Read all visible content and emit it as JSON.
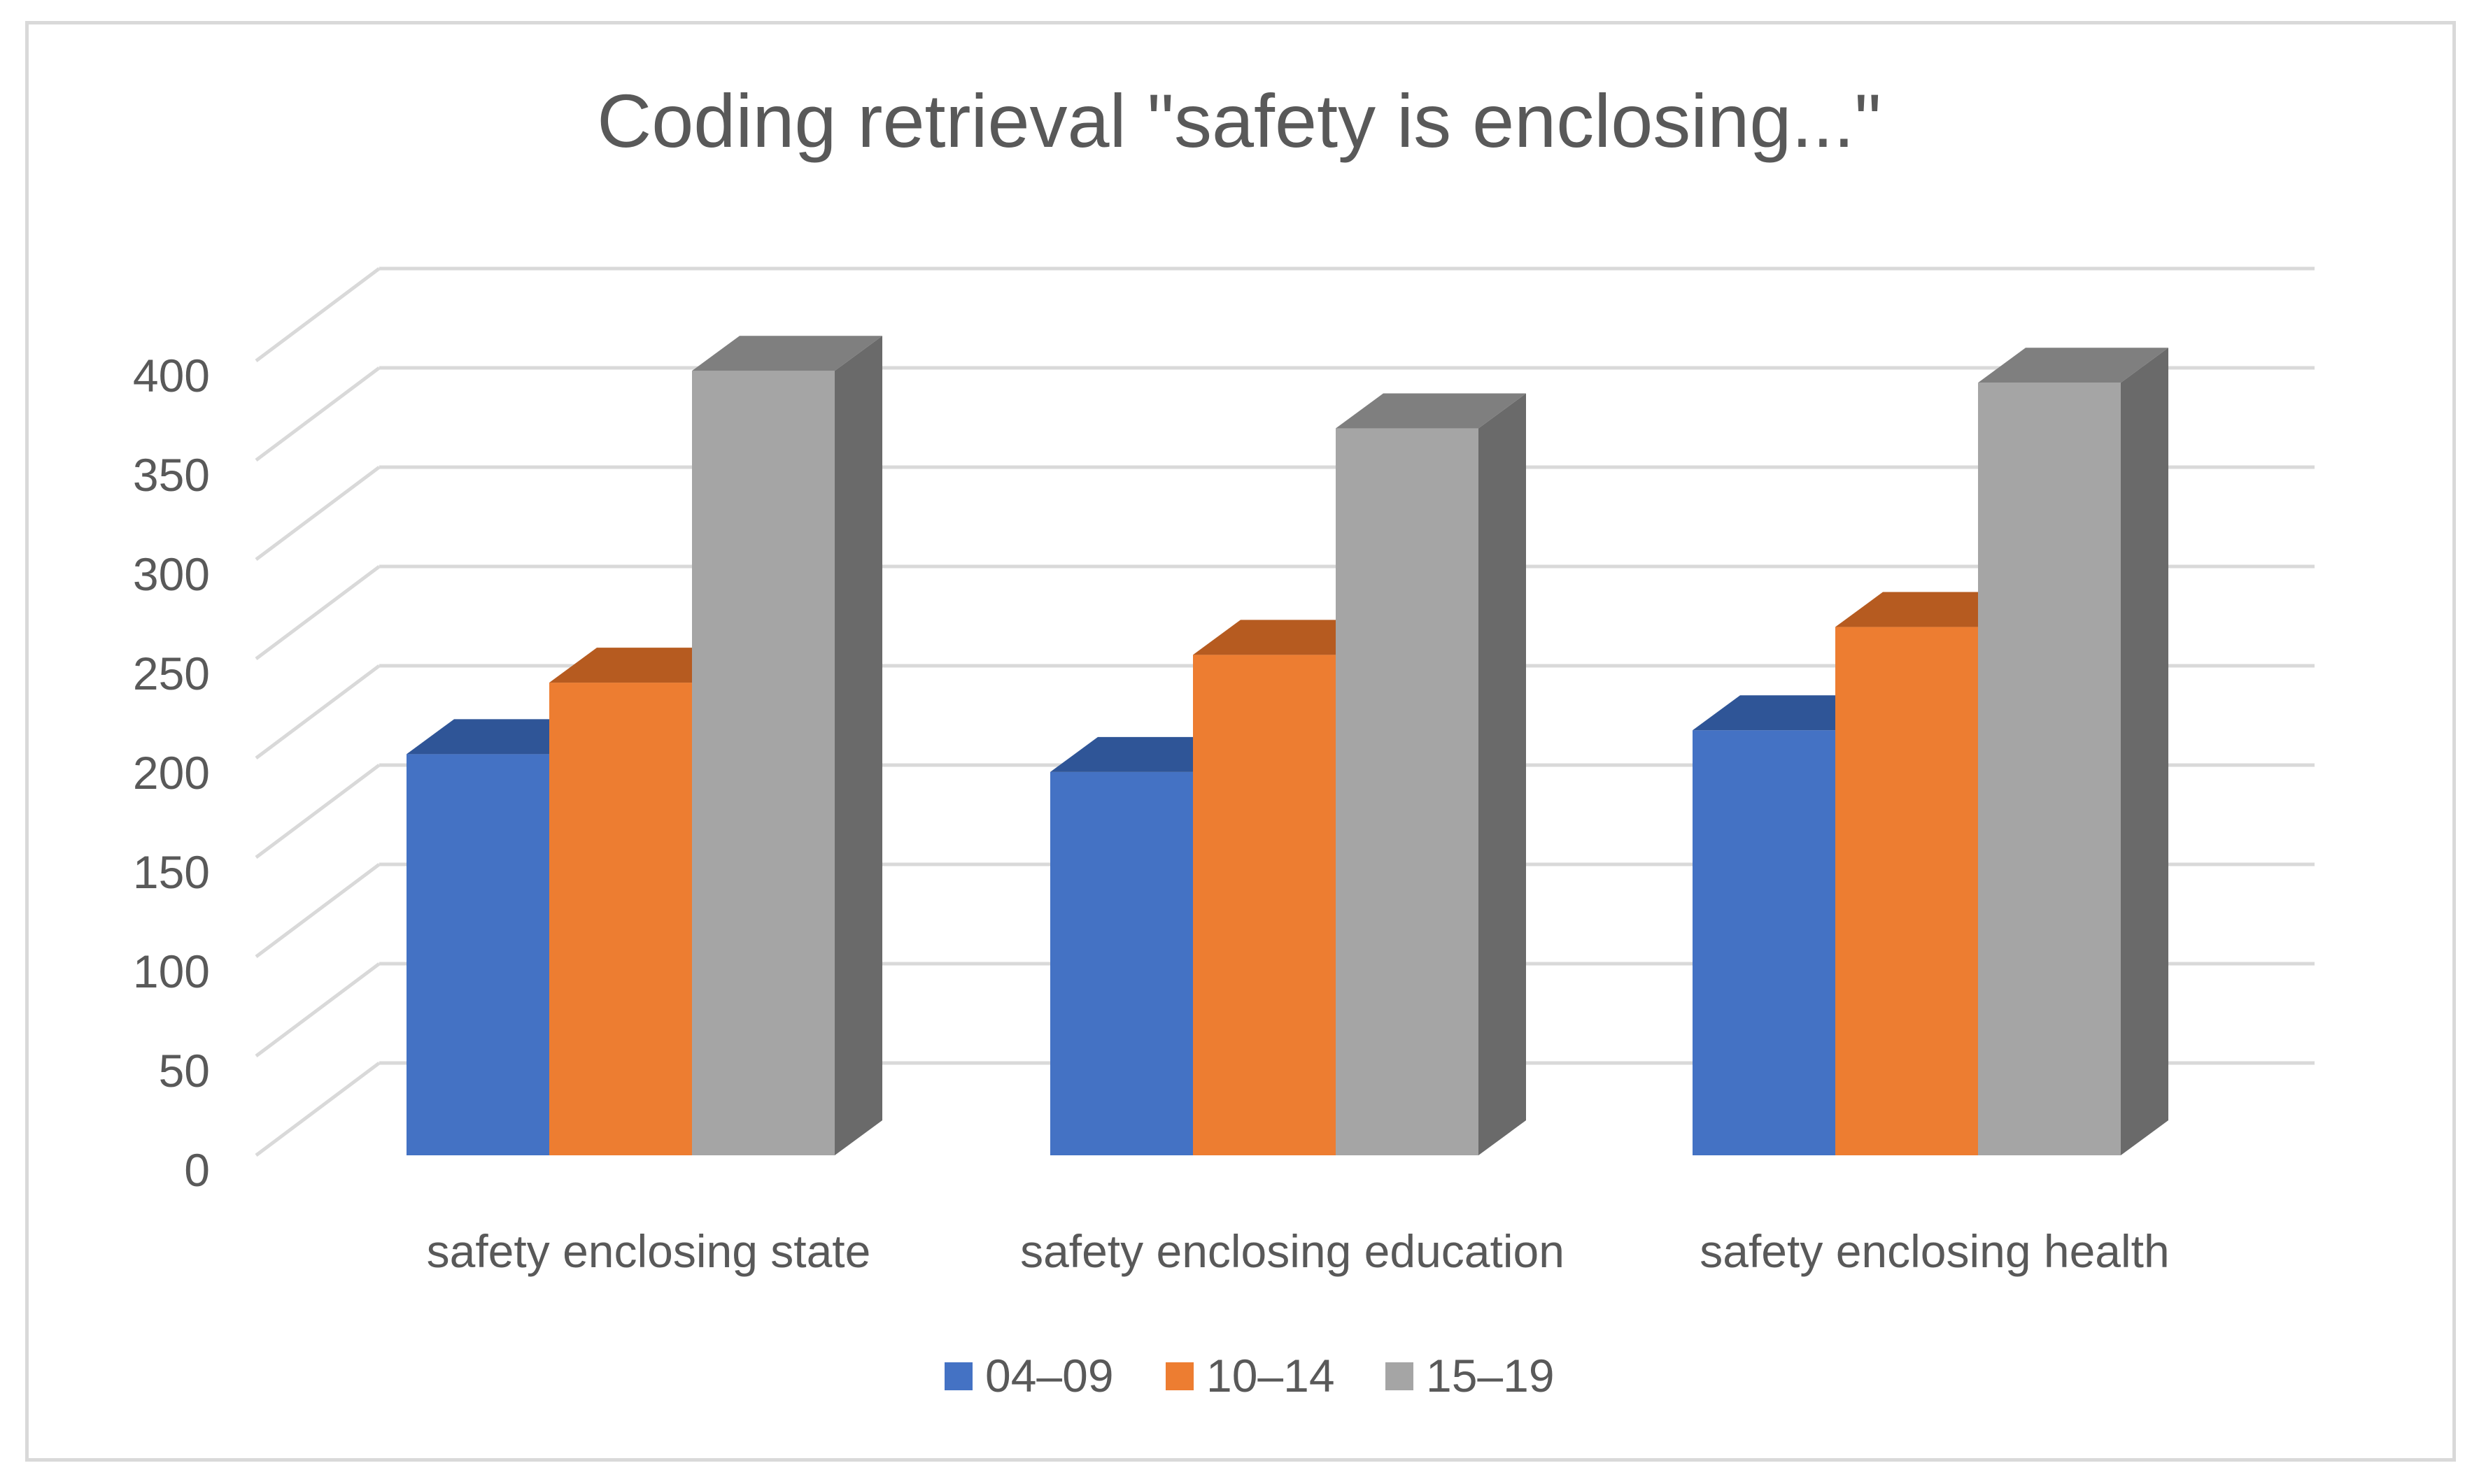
{
  "chart_data": {
    "type": "bar",
    "style": "3d-clustered-column",
    "title": "Coding retrieval \"safety is enclosing...\"",
    "categories": [
      "safety enclosing state",
      "safety enclosing education",
      "safety enclosing health"
    ],
    "series": [
      {
        "name": "04–09",
        "values": [
          202,
          193,
          214
        ],
        "color": "#4472C4",
        "top_color": "#2F5597"
      },
      {
        "name": "10–14",
        "values": [
          238,
          252,
          266
        ],
        "color": "#ED7D31",
        "top_color": "#B65B20"
      },
      {
        "name": "15–19",
        "values": [
          395,
          366,
          389
        ],
        "color": "#A5A5A5",
        "top_color": "#7F7F7F",
        "side_color": "#6A6A6A"
      }
    ],
    "ylim": [
      0,
      400
    ],
    "yticks": [
      0,
      50,
      100,
      150,
      200,
      250,
      300,
      350,
      400
    ],
    "ytick_labels": [
      "0",
      "50",
      "100",
      "150",
      "200",
      "250",
      "300",
      "350",
      "400"
    ],
    "xlabel": "",
    "ylabel": "",
    "grid": true,
    "legend_position": "bottom",
    "colors": {
      "grid": "#d9d9d9",
      "text": "#595959",
      "frame": "#d9d9d9"
    }
  }
}
